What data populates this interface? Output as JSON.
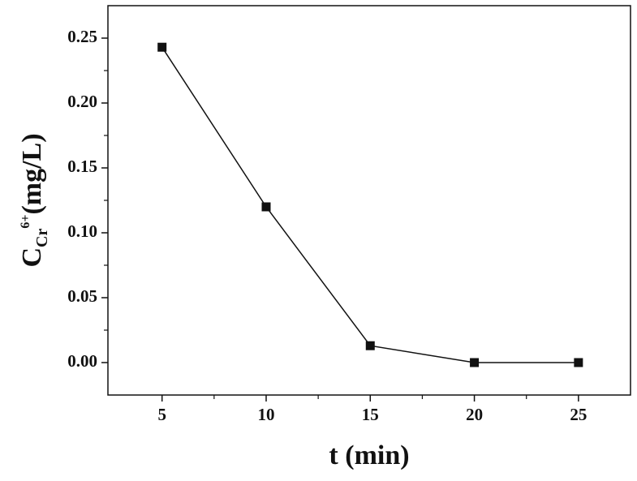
{
  "chart_data": {
    "type": "line",
    "x_label": "t (min)",
    "y_label": "C",
    "y_label_sub": "Cr",
    "y_label_sup": "6+",
    "y_label_unit": "(mg/L)",
    "x": [
      5,
      10,
      15,
      20,
      25
    ],
    "series": [
      {
        "name": "C",
        "color": "#111111",
        "values": [
          0.243,
          0.12,
          0.013,
          0,
          0
        ]
      }
    ],
    "xlim": [
      2.4,
      27.5
    ],
    "ylim": [
      -0.025,
      0.275
    ],
    "xticks": [
      5,
      10,
      15,
      20,
      25
    ],
    "xminor_ticks": [
      7.5,
      12.5,
      17.5,
      22.5
    ],
    "yticks": [
      {
        "value": 0,
        "label": "0.00"
      },
      {
        "value": 0.05,
        "label": "0.05"
      },
      {
        "value": 0.1,
        "label": "0.10"
      },
      {
        "value": 0.15,
        "label": "0.15"
      },
      {
        "value": 0.2,
        "label": "0.20"
      },
      {
        "value": 0.25,
        "label": "0.25"
      }
    ],
    "yminor_ticks": [
      0.025,
      0.075,
      0.125,
      0.175,
      0.225
    ],
    "marker": "square",
    "grid": false
  }
}
